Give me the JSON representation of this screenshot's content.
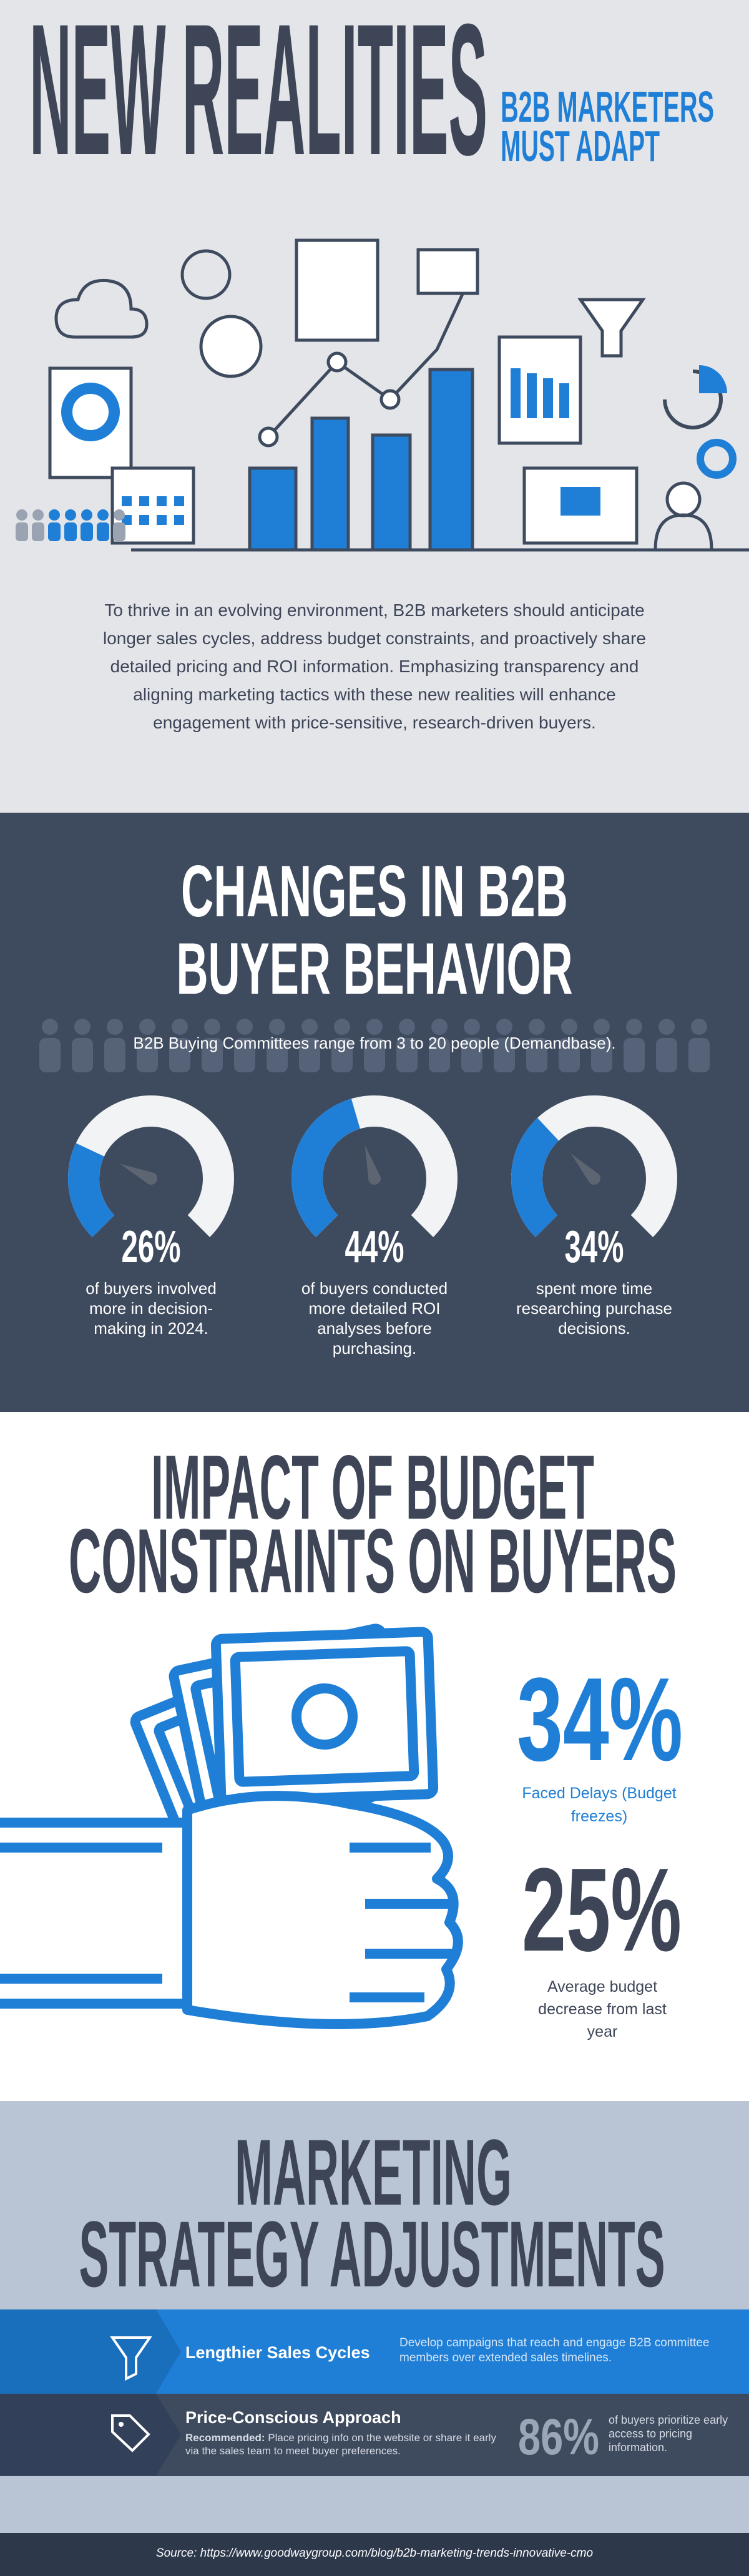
{
  "header": {
    "title": "NEW REALITIES",
    "subtitle_lines": [
      "B2B MARKETERS",
      "MUST ADAPT"
    ]
  },
  "intro": "To thrive in an evolving environment, B2B marketers should anticipate longer sales cycles, address budget constraints, and proactively share detailed pricing and ROI information. Emphasizing transparency and aligning marketing tactics with these new realities will enhance engagement with price-sensitive, research-driven buyers.",
  "behavior": {
    "title_lines": [
      "CHANGES IN B2B",
      "BUYER BEHAVIOR"
    ],
    "committee_note": "B2B Buying Committees range from 3 to 20 people (Demandbase).",
    "stats": [
      {
        "value": 26,
        "label": "26%",
        "caption": "of buyers involved more in decision-making in 2024."
      },
      {
        "value": 44,
        "label": "44%",
        "caption": "of buyers conducted more detailed ROI analyses before purchasing."
      },
      {
        "value": 34,
        "label": "34%",
        "caption": "spent more time researching purchase decisions."
      }
    ]
  },
  "budget": {
    "title_lines": [
      "IMPACT OF BUDGET",
      "CONSTRAINTS ON BUYERS"
    ],
    "stats": [
      {
        "label": "34%",
        "caption": "Faced Delays (Budget freezes)"
      },
      {
        "label": "25%",
        "caption": "Average budget decrease from last year"
      }
    ]
  },
  "strategy": {
    "title_lines": [
      "MARKETING",
      "STRATEGY ADJUSTMENTS"
    ],
    "items": [
      {
        "title": "Lengthier Sales Cycles",
        "description": "Develop campaigns that reach and engage B2B committee members over extended sales timelines."
      },
      {
        "title": "Price-Conscious Approach",
        "recommendation_label": "Recommended:",
        "description": "Place pricing info on the website or share it early via the sales team to meet buyer preferences.",
        "stat": {
          "label": "86%",
          "caption": "of buyers prioritize early access to pricing information."
        }
      }
    ]
  },
  "footer": {
    "source": "Source: https://www.goodwaygroup.com/blog/b2b-marketing-trends-innovative-cmo"
  }
}
